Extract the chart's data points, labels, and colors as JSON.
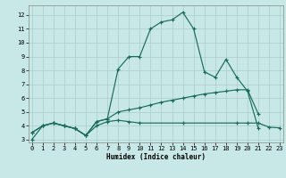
{
  "background_color": "#c8e8e8",
  "grid_color": "#aacccc",
  "line_color": "#1a6b5a",
  "xlim": [
    -0.3,
    23.3
  ],
  "ylim": [
    2.8,
    12.7
  ],
  "xlabel": "Humidex (Indice chaleur)",
  "xticks": [
    0,
    1,
    2,
    3,
    4,
    5,
    6,
    7,
    8,
    9,
    10,
    11,
    12,
    13,
    14,
    15,
    16,
    17,
    18,
    19,
    20,
    21,
    22,
    23
  ],
  "yticks": [
    3,
    4,
    5,
    6,
    7,
    8,
    9,
    10,
    11,
    12
  ],
  "line1_x": [
    0,
    1,
    2,
    3,
    4,
    5,
    6,
    7,
    8,
    9,
    10,
    11,
    12,
    13,
    14,
    15,
    16,
    17,
    18,
    19,
    20,
    21
  ],
  "line1_y": [
    3.0,
    4.0,
    4.2,
    4.0,
    3.8,
    3.3,
    4.3,
    4.5,
    8.1,
    9.0,
    9.0,
    11.0,
    11.5,
    11.65,
    12.2,
    11.0,
    7.9,
    7.5,
    8.8,
    7.5,
    6.5,
    3.8
  ],
  "line2_x": [
    0,
    1,
    2,
    3,
    4,
    5,
    6,
    7,
    8,
    9,
    10,
    14,
    19,
    20,
    21,
    22,
    23
  ],
  "line2_y": [
    3.5,
    4.0,
    4.2,
    4.0,
    3.8,
    3.3,
    4.0,
    4.3,
    4.4,
    4.3,
    4.2,
    4.2,
    4.2,
    4.2,
    4.2,
    3.9,
    3.85
  ],
  "line3_x": [
    0,
    1,
    2,
    3,
    4,
    5,
    6,
    7,
    8,
    9,
    10,
    11,
    12,
    13,
    14,
    15,
    16,
    17,
    18,
    19,
    20,
    21
  ],
  "line3_y": [
    3.5,
    4.0,
    4.2,
    4.0,
    3.8,
    3.3,
    4.3,
    4.5,
    5.0,
    5.15,
    5.3,
    5.5,
    5.7,
    5.85,
    6.0,
    6.15,
    6.3,
    6.4,
    6.5,
    6.6,
    6.6,
    4.85
  ]
}
